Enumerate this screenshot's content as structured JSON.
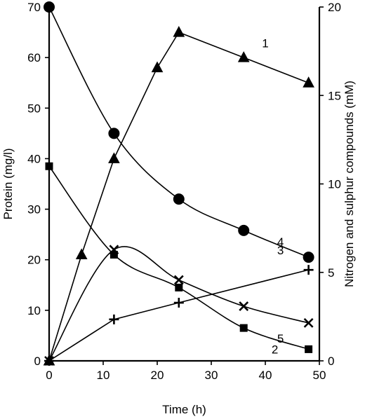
{
  "chart_data": {
    "type": "line",
    "xlabel": "Time (h)",
    "ylabel_left": "Protein (mg/l)",
    "ylabel_right": "Nitrogen and sulphur compounds (mM)",
    "xlim": [
      0,
      50
    ],
    "ylim_left": [
      0,
      70
    ],
    "ylim_right": [
      0,
      20
    ],
    "x_ticks": [
      0,
      10,
      20,
      30,
      40,
      50
    ],
    "y_left_ticks": [
      0,
      10,
      20,
      30,
      40,
      50,
      60,
      70
    ],
    "y_right_ticks": [
      0,
      5,
      10,
      15,
      20
    ],
    "grid": false,
    "series": [
      {
        "name": "1",
        "axis": "left",
        "marker": "triangle",
        "x": [
          0,
          6,
          12,
          20,
          24,
          36,
          48
        ],
        "y": [
          0,
          21,
          40,
          58,
          65,
          60,
          55
        ]
      },
      {
        "name": "2",
        "axis": "left",
        "marker": "square",
        "x": [
          0,
          12,
          24,
          36,
          48
        ],
        "y": [
          38.5,
          21,
          14.5,
          6.5,
          2.3
        ]
      },
      {
        "name": "3",
        "axis": "left",
        "marker": "plus",
        "x": [
          0,
          12,
          24,
          48
        ],
        "y": [
          0,
          8.2,
          11.5,
          18
        ]
      },
      {
        "name": "4",
        "axis": "left",
        "marker": "circle",
        "x": [
          0,
          12,
          24,
          36,
          48
        ],
        "y": [
          70,
          45,
          32,
          25.8,
          20.5
        ]
      },
      {
        "name": "5",
        "axis": "left",
        "marker": "cross",
        "x": [
          0,
          12,
          24,
          36,
          48
        ],
        "y": [
          0,
          22,
          16,
          10.8,
          7.5
        ]
      }
    ]
  }
}
